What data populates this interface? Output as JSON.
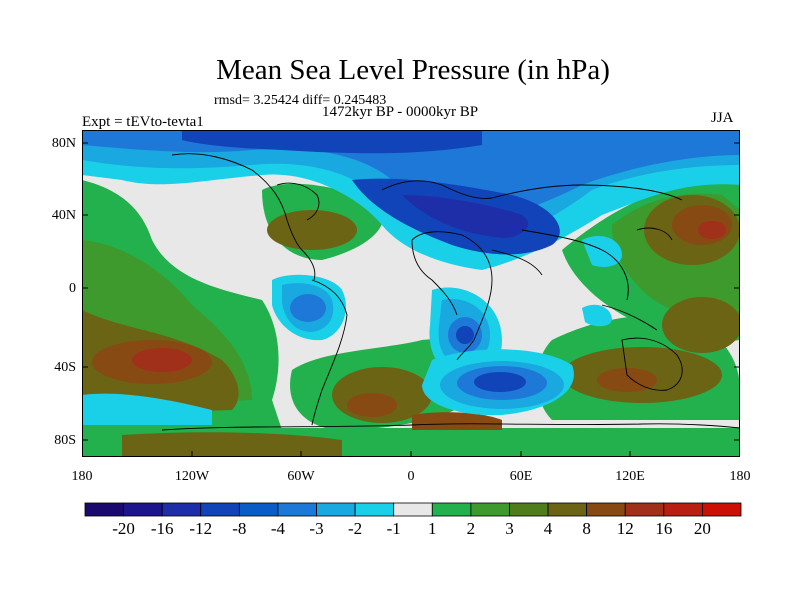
{
  "title": "Mean Sea Level Pressure (in hPa)",
  "stats": "rmsd= 3.25424 diff= 0.245483",
  "period": "1472kyr BP - 0000kyr BP",
  "experiment": "Expt = tEVto-tevta1",
  "season": "JJA",
  "lat_labels": [
    "80N",
    "40N",
    "0",
    "40S",
    "80S"
  ],
  "lon_labels": [
    "180",
    "120W",
    "60W",
    "0",
    "60E",
    "120E",
    "180"
  ],
  "colorbar": {
    "colors": [
      "#1a0a6e",
      "#1c168c",
      "#1e2ea8",
      "#1144b8",
      "#0a5cc7",
      "#1e78d8",
      "#1aa8e0",
      "#1ad0e8",
      "#e8e8e8",
      "#22b14c",
      "#3e9a2c",
      "#4f7d1a",
      "#6b6414",
      "#874a12",
      "#a0301a",
      "#b81e12",
      "#cc1006"
    ],
    "labels": [
      "-20",
      "-16",
      "-12",
      "-8",
      "-4",
      "-3",
      "-2",
      "-1",
      "1",
      "2",
      "3",
      "4",
      "8",
      "12",
      "16",
      "20"
    ]
  },
  "palette": {
    "neutral": "#e8e8e8",
    "pos_weak": "#22b14c",
    "pos_mid": "#3e9a2c",
    "pos_strong": "#6b6414",
    "pos_max": "#874a12",
    "pos_peak": "#a0301a",
    "neg_weak": "#1ad0e8",
    "neg_mid": "#1aa8e0",
    "neg_strong": "#1e78d8",
    "neg_max": "#1144b8",
    "neg_peak": "#1e2ea8"
  }
}
